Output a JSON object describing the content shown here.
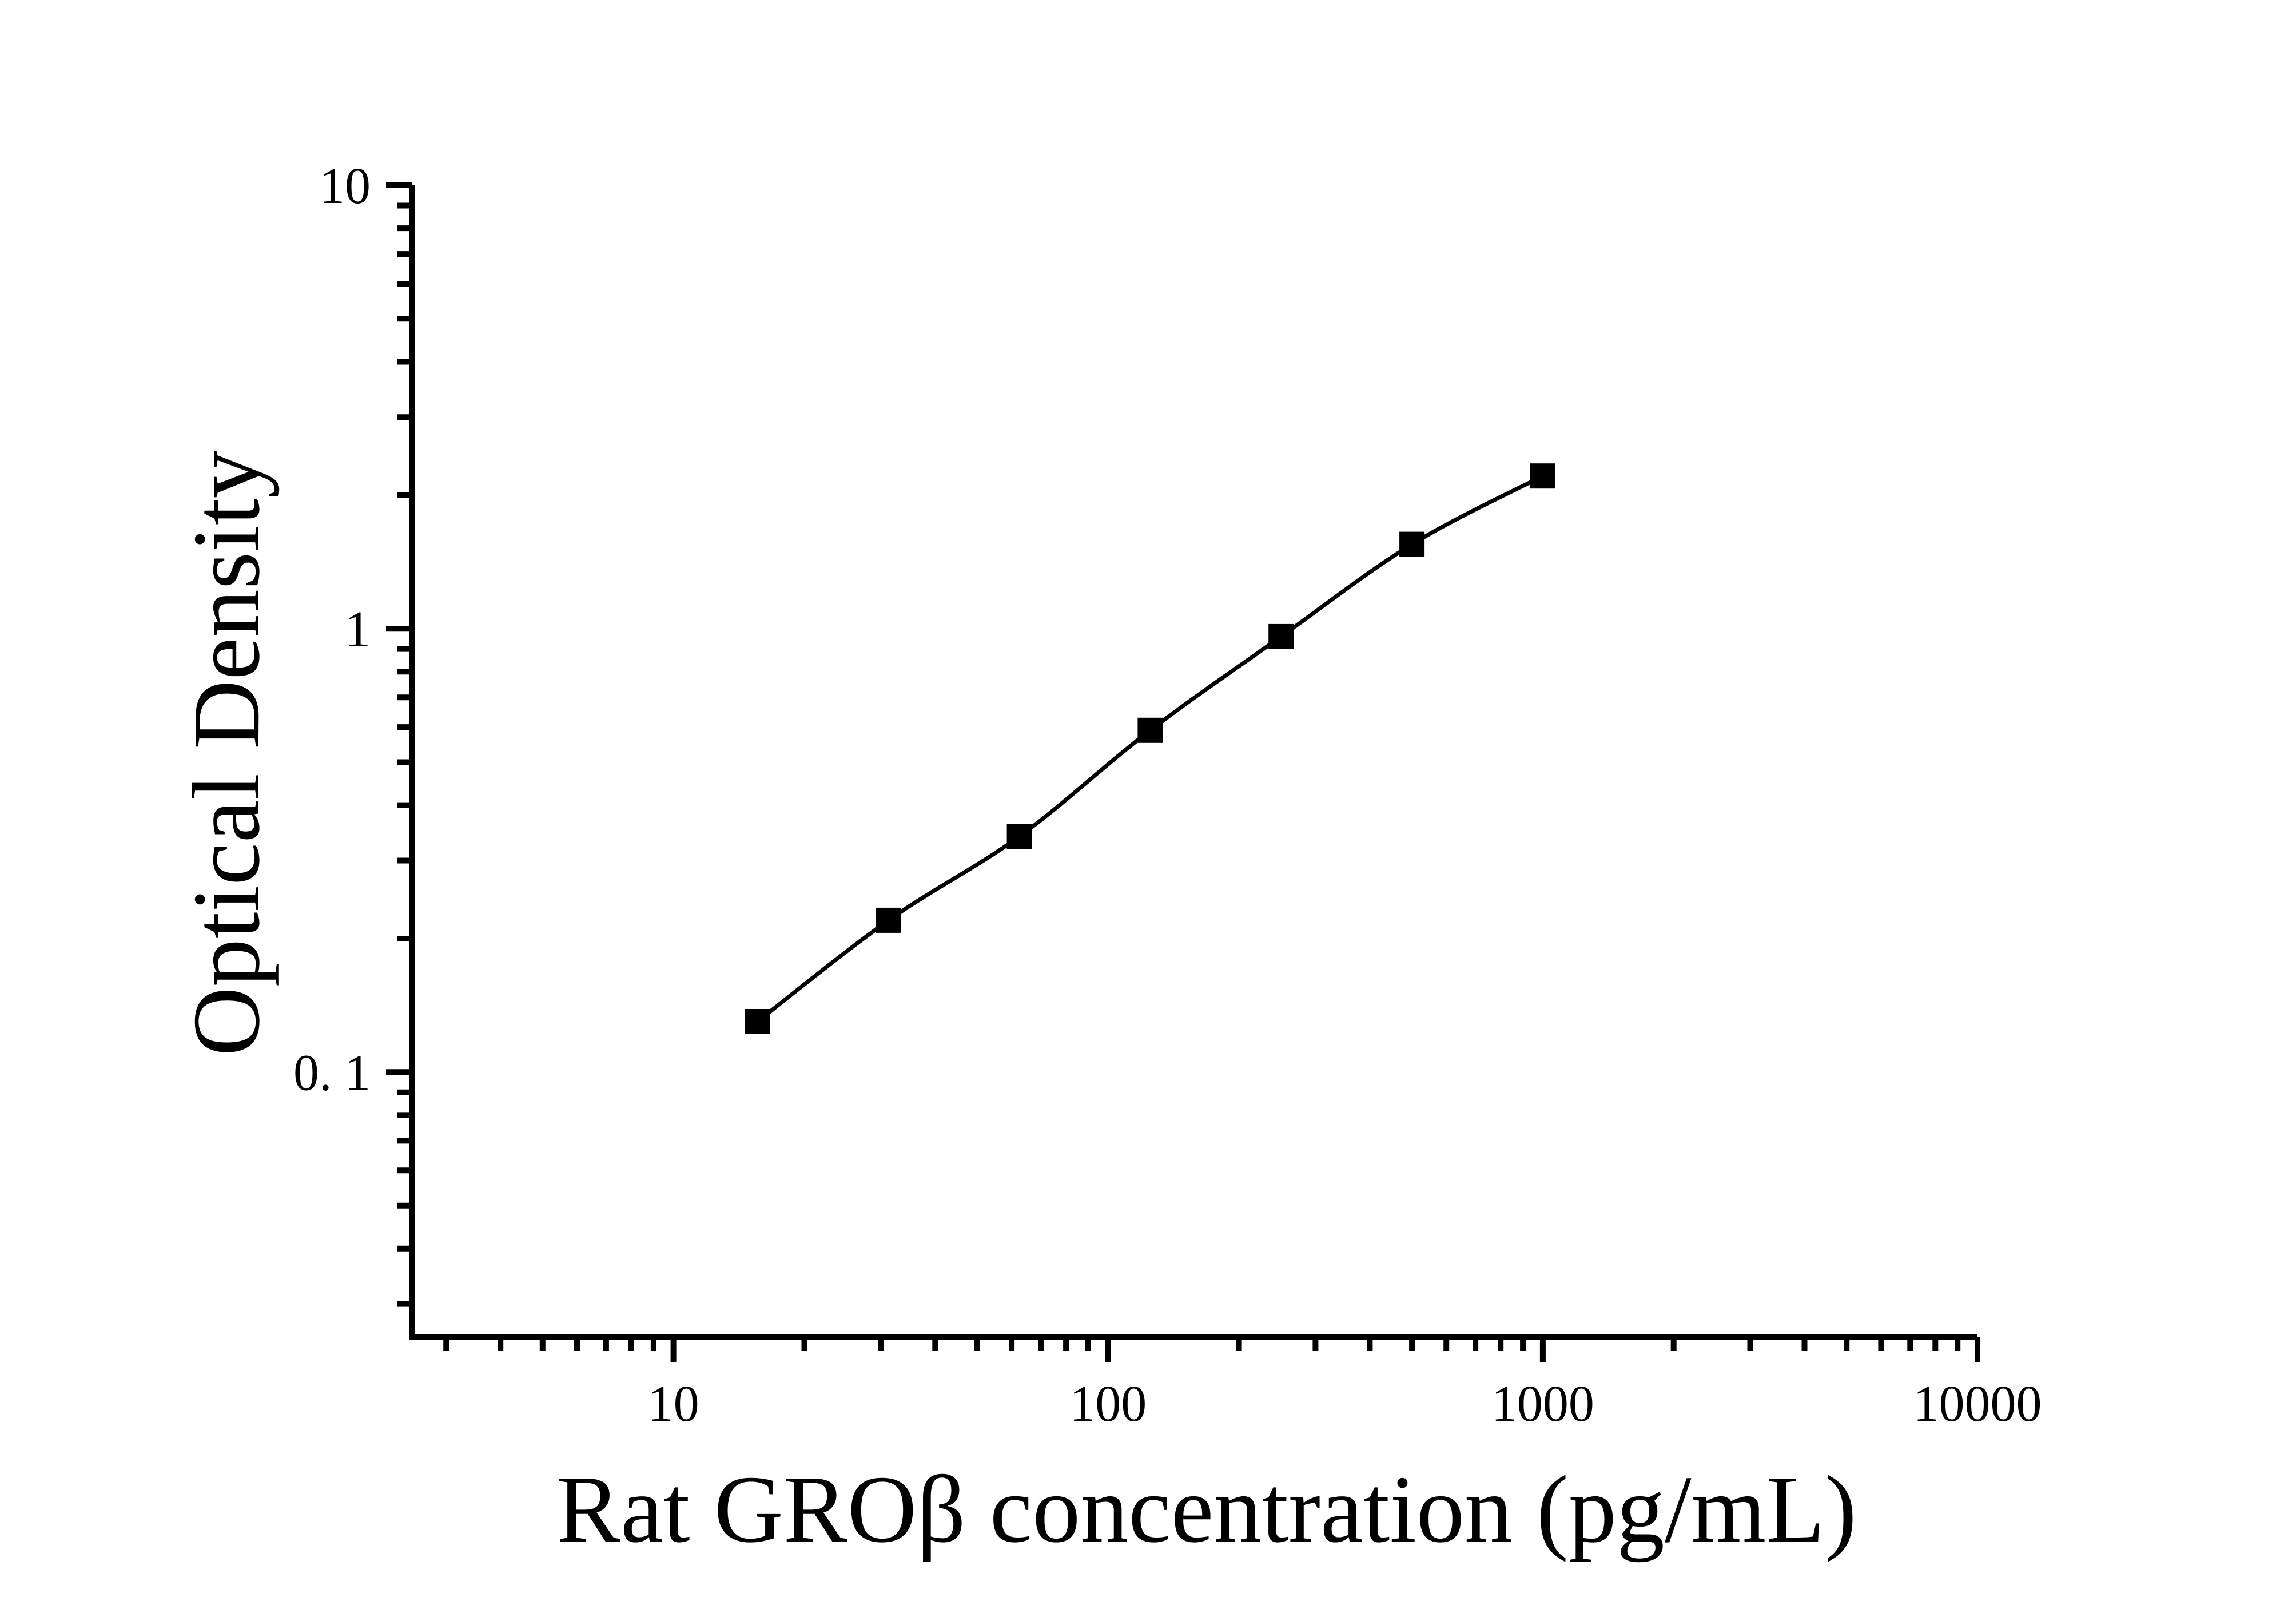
{
  "page": {
    "background_color": "#ffffff",
    "foreground_color": "#000000"
  },
  "chart_data": {
    "type": "line",
    "title": "",
    "xlabel": "Rat GROβ concentration (pg/mL)",
    "ylabel": "Optical Density",
    "x_scale": "log",
    "y_scale": "log",
    "xlim": [
      2.5,
      10000
    ],
    "ylim": [
      0.0253,
      10
    ],
    "grid": false,
    "legend": "none",
    "x_major_ticks": [
      {
        "value": 10,
        "label": "10"
      },
      {
        "value": 100,
        "label": "100"
      },
      {
        "value": 1000,
        "label": "1000"
      },
      {
        "value": 10000,
        "label": "10000"
      }
    ],
    "y_major_ticks": [
      {
        "value": 10,
        "label": "10"
      },
      {
        "value": 1,
        "label": "1"
      },
      {
        "value": 0.1,
        "label": "0. 1"
      }
    ],
    "minor_tick_mantissas": [
      2,
      3,
      4,
      5,
      6,
      7,
      8,
      9
    ],
    "series": [
      {
        "marker": "filled-square",
        "line_style": "smooth",
        "color": "#000000",
        "points": [
          {
            "x": 15.6,
            "y": 0.13
          },
          {
            "x": 31.25,
            "y": 0.22
          },
          {
            "x": 62.5,
            "y": 0.34
          },
          {
            "x": 125,
            "y": 0.59
          },
          {
            "x": 250,
            "y": 0.96
          },
          {
            "x": 500,
            "y": 1.55
          },
          {
            "x": 1000,
            "y": 2.21
          }
        ]
      }
    ]
  }
}
